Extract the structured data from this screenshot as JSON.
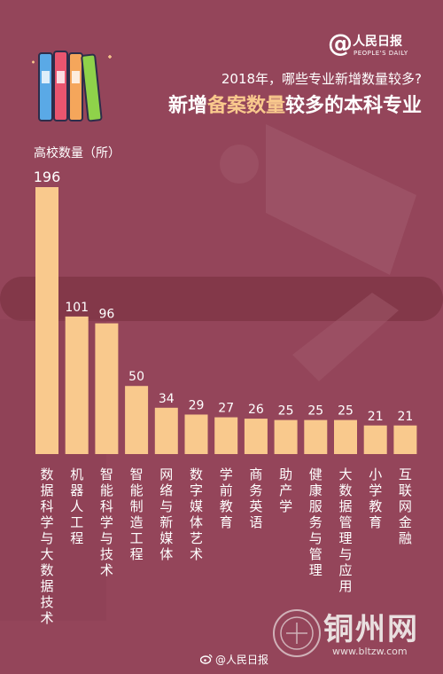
{
  "header": {
    "logo_text": "人民日报",
    "logo_sub": "PEOPLE'S DAILY",
    "subtitle": "2018年，哪些专业新增数量较多?",
    "title_part1": "新增",
    "title_highlight": "备案数量",
    "title_part2": "较多的本科专业"
  },
  "footer": {
    "weibo": "@人民日报"
  },
  "watermark": {
    "site": "铜州网",
    "url": "www.bltzw.com"
  },
  "colors": {
    "background": "#94455a",
    "bar": "#f9c98d",
    "highlight": "#f9c98d"
  },
  "chart_data": {
    "type": "bar",
    "ylabel": "高校数量（所）",
    "categories": [
      "数据科学与大数据技术",
      "机器人工程",
      "智能科学与技术",
      "智能制造工程",
      "网络与新媒体",
      "数字媒体艺术",
      "学前教育",
      "商务英语",
      "助产学",
      "健康服务与管理",
      "大数据管理与应用",
      "小学教育",
      "互联网金融"
    ],
    "values": [
      196,
      101,
      96,
      50,
      34,
      29,
      27,
      26,
      25,
      25,
      25,
      21,
      21
    ],
    "ylim": [
      0,
      196
    ],
    "grid": false,
    "legend": "none"
  }
}
